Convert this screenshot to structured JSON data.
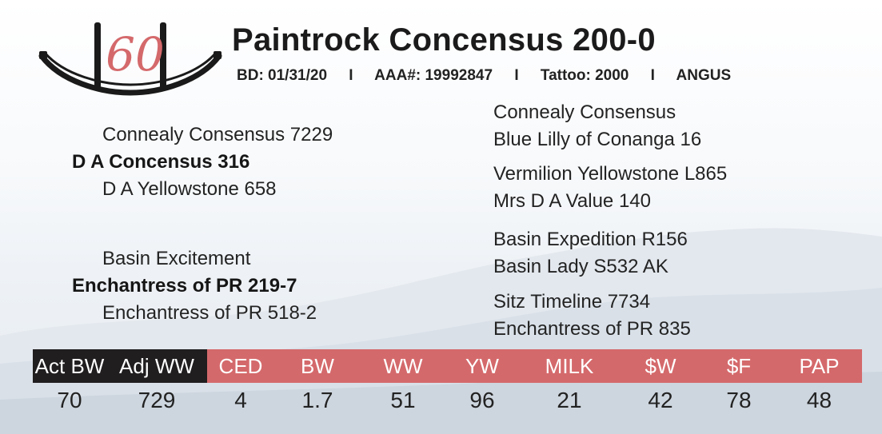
{
  "lot_number": "60",
  "title": "Paintrock Concensus 200-0",
  "info": {
    "bd": "BD: 01/31/20",
    "aaa": "AAA#: 19992847",
    "tattoo": "Tattoo: 2000",
    "breed": "ANGUS",
    "separator": "I"
  },
  "pedigree": {
    "sire": "D A Concensus 316",
    "sire_sire": "Connealy Consensus 7229",
    "sire_dam": "D A Yellowstone 658",
    "dam": "Enchantress of PR 219-7",
    "dam_sire": "Basin Excitement",
    "dam_dam": "Enchantress of PR 518-2",
    "ggp": [
      "Connealy Consensus",
      "Blue Lilly of Conanga 16",
      "Vermilion Yellowstone L865",
      "Mrs D A Value 140",
      "Basin Expedition R156",
      "Basin Lady S532 AK",
      "Sitz Timeline 7734",
      "Enchantress of PR 835"
    ]
  },
  "epd": {
    "headers": [
      "Act BW",
      "Adj WW",
      "CED",
      "BW",
      "WW",
      "YW",
      "MILK",
      "$W",
      "$F",
      "PAP"
    ],
    "values": [
      "70",
      "729",
      "4",
      "1.7",
      "51",
      "96",
      "21",
      "42",
      "78",
      "48"
    ]
  },
  "colors": {
    "accent_red": "#d4696b",
    "dark": "#211e1f"
  }
}
